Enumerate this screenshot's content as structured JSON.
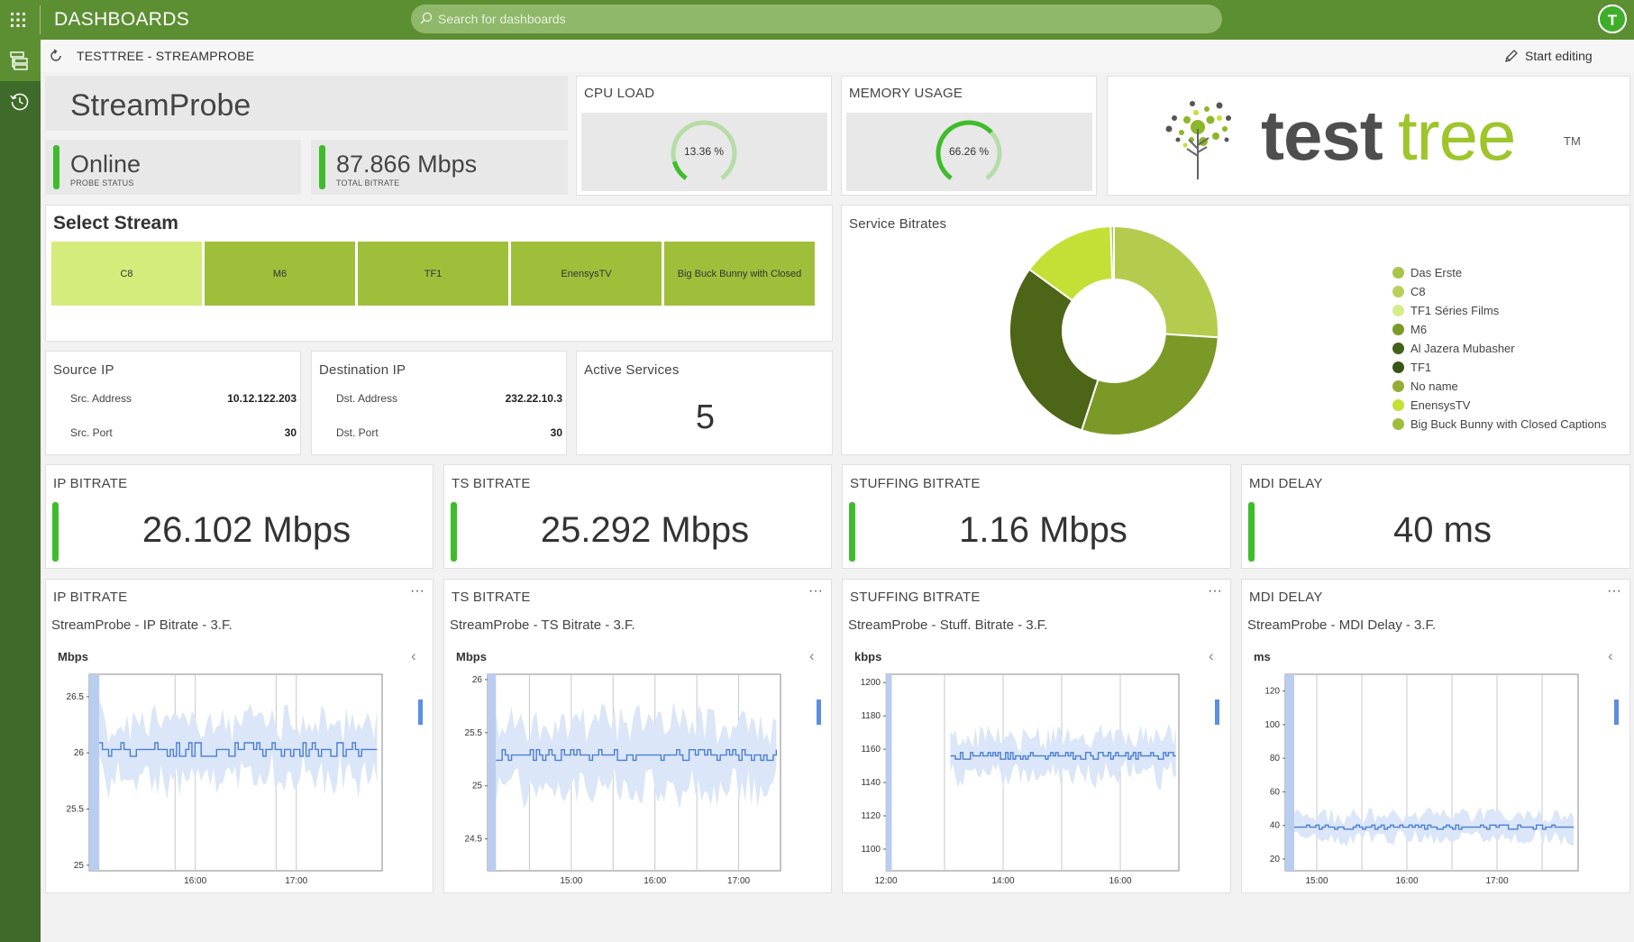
{
  "topbar": {
    "title": "DASHBOARDS",
    "search_placeholder": "Search for dashboards",
    "user_initial": "T"
  },
  "breadcrumb": {
    "path": "TESTTREE - STREAMPROBE",
    "edit_label": "Start editing",
    "more": "···"
  },
  "probe": {
    "name": "StreamProbe",
    "status_value": "Online",
    "status_label": "PROBE STATUS",
    "bitrate_value": "87.866 Mbps",
    "bitrate_label": "TOTAL BITRATE"
  },
  "cpu": {
    "title": "CPU LOAD",
    "value_text": "13.36 %",
    "value": 13.36
  },
  "memory": {
    "title": "MEMORY USAGE",
    "value_text": "66.26 %",
    "value": 66.26
  },
  "logo": {
    "text_dark": "test",
    "text_light": "tree",
    "tm": "TM"
  },
  "select_stream": {
    "title": "Select Stream",
    "buttons": [
      {
        "label": "C8",
        "color": "#d4ec7c"
      },
      {
        "label": "M6",
        "color": "#9fbf3b"
      },
      {
        "label": "TF1",
        "color": "#9fbf3b"
      },
      {
        "label": "EnensysTV",
        "color": "#9fbf3b"
      },
      {
        "label": "Big Buck Bunny with Closed",
        "color": "#9fbf3b"
      }
    ]
  },
  "source_ip": {
    "title": "Source IP",
    "addr_label": "Src. Address",
    "addr_value": "10.12.122.203",
    "port_label": "Src. Port",
    "port_value": "30"
  },
  "dest_ip": {
    "title": "Destination IP",
    "addr_label": "Dst. Address",
    "addr_value": "232.22.10.3",
    "port_label": "Dst. Port",
    "port_value": "30"
  },
  "active_services": {
    "title": "Active Services",
    "value": "5"
  },
  "service_bitrates": {
    "title": "Service Bitrates",
    "legend": [
      {
        "name": "Das Erste",
        "color": "#a9c44a"
      },
      {
        "name": "C8",
        "color": "#b9cf5c"
      },
      {
        "name": "TF1 Séries Films",
        "color": "#d6ec8a"
      },
      {
        "name": "M6",
        "color": "#7b9a27"
      },
      {
        "name": "Al Jazera Mubasher",
        "color": "#45601a"
      },
      {
        "name": "TF1",
        "color": "#3b5514"
      },
      {
        "name": "No name",
        "color": "#92ad36"
      },
      {
        "name": "EnensysTV",
        "color": "#c4e037"
      },
      {
        "name": "Big Buck Bunny with Closed Captions",
        "color": "#a1bc3c"
      }
    ],
    "chart_data": {
      "type": "pie",
      "slices": [
        {
          "name": "C8",
          "value": 26,
          "color": "#b4cc4d"
        },
        {
          "name": "M6",
          "value": 29,
          "color": "#7a9926"
        },
        {
          "name": "TF1",
          "value": 30,
          "color": "#4c6516"
        },
        {
          "name": "EnensysTV",
          "value": 14.5,
          "color": "#c4e037"
        },
        {
          "name": "Das Erste",
          "value": 0.5,
          "color": "#a9c44a"
        }
      ]
    }
  },
  "kpis": [
    {
      "title": "IP BITRATE",
      "value": "26.102 Mbps"
    },
    {
      "title": "TS BITRATE",
      "value": "25.292 Mbps"
    },
    {
      "title": "STUFFING BITRATE",
      "value": "1.16 Mbps"
    },
    {
      "title": "MDI DELAY",
      "value": "40 ms"
    }
  ],
  "charts": [
    {
      "title": "IP BITRATE",
      "subtitle": "StreamProbe - IP Bitrate - 3.F.",
      "unit": "Mbps",
      "chart_data": {
        "type": "line",
        "ylim": [
          24.95,
          26.7
        ],
        "yticks": [
          25,
          25.5,
          26,
          26.5
        ],
        "xlim": [
          14.95,
          17.85
        ],
        "xticks": [
          {
            "v": 16,
            "label": "16:00"
          },
          {
            "v": 17,
            "label": "17:00"
          }
        ],
        "vgrid": [
          15.8,
          16.8
        ],
        "start": 15.05,
        "end": 17.8,
        "mean": 26.03,
        "noise": 0.06,
        "band": 0.35,
        "current_window": [
          14.95,
          15.05
        ]
      }
    },
    {
      "title": "TS BITRATE",
      "subtitle": "StreamProbe - TS Bitrate - 3.F.",
      "unit": "Mbps",
      "chart_data": {
        "type": "line",
        "ylim": [
          24.2,
          26.05
        ],
        "yticks": [
          24.5,
          25,
          25.5,
          26
        ],
        "xlim": [
          14.0,
          17.5
        ],
        "xticks": [
          {
            "v": 15,
            "label": "15:00"
          },
          {
            "v": 16,
            "label": "16:00"
          },
          {
            "v": 17,
            "label": "17:00"
          }
        ],
        "vgrid": [
          14.5,
          15.5,
          16.5
        ],
        "start": 14.1,
        "end": 17.45,
        "mean": 25.29,
        "noise": 0.05,
        "band": 0.45,
        "current_window": [
          14.0,
          14.1
        ]
      }
    },
    {
      "title": "STUFFING BITRATE",
      "subtitle": "StreamProbe - Stuff. Bitrate - 3.F.",
      "unit": "kbps",
      "chart_data": {
        "type": "line",
        "ylim": [
          1087,
          1205
        ],
        "yticks": [
          1100,
          1120,
          1140,
          1160,
          1180,
          1200
        ],
        "xlim": [
          12.0,
          17.0
        ],
        "xticks": [
          {
            "v": 12,
            "label": "12:00"
          },
          {
            "v": 14,
            "label": "14:00"
          },
          {
            "v": 16,
            "label": "16:00"
          }
        ],
        "vgrid": [
          13.0,
          15.0
        ],
        "start": 13.1,
        "end": 16.95,
        "mean": 1156,
        "noise": 2,
        "band": 16,
        "current_window": [
          12.0,
          12.1
        ]
      }
    },
    {
      "title": "MDI DELAY",
      "subtitle": "StreamProbe - MDI Delay - 3.F.",
      "unit": "ms",
      "chart_data": {
        "type": "line",
        "ylim": [
          13,
          130
        ],
        "yticks": [
          20,
          40,
          60,
          80,
          100,
          120
        ],
        "xlim": [
          14.65,
          17.9
        ],
        "xticks": [
          {
            "v": 15,
            "label": "15:00"
          },
          {
            "v": 16,
            "label": "16:00"
          },
          {
            "v": 17,
            "label": "17:00"
          }
        ],
        "vgrid": [
          15.5,
          16.5,
          17.5
        ],
        "start": 14.75,
        "end": 17.85,
        "mean": 39,
        "noise": 1.2,
        "band": 10,
        "current_window": [
          14.65,
          14.75
        ]
      }
    }
  ]
}
